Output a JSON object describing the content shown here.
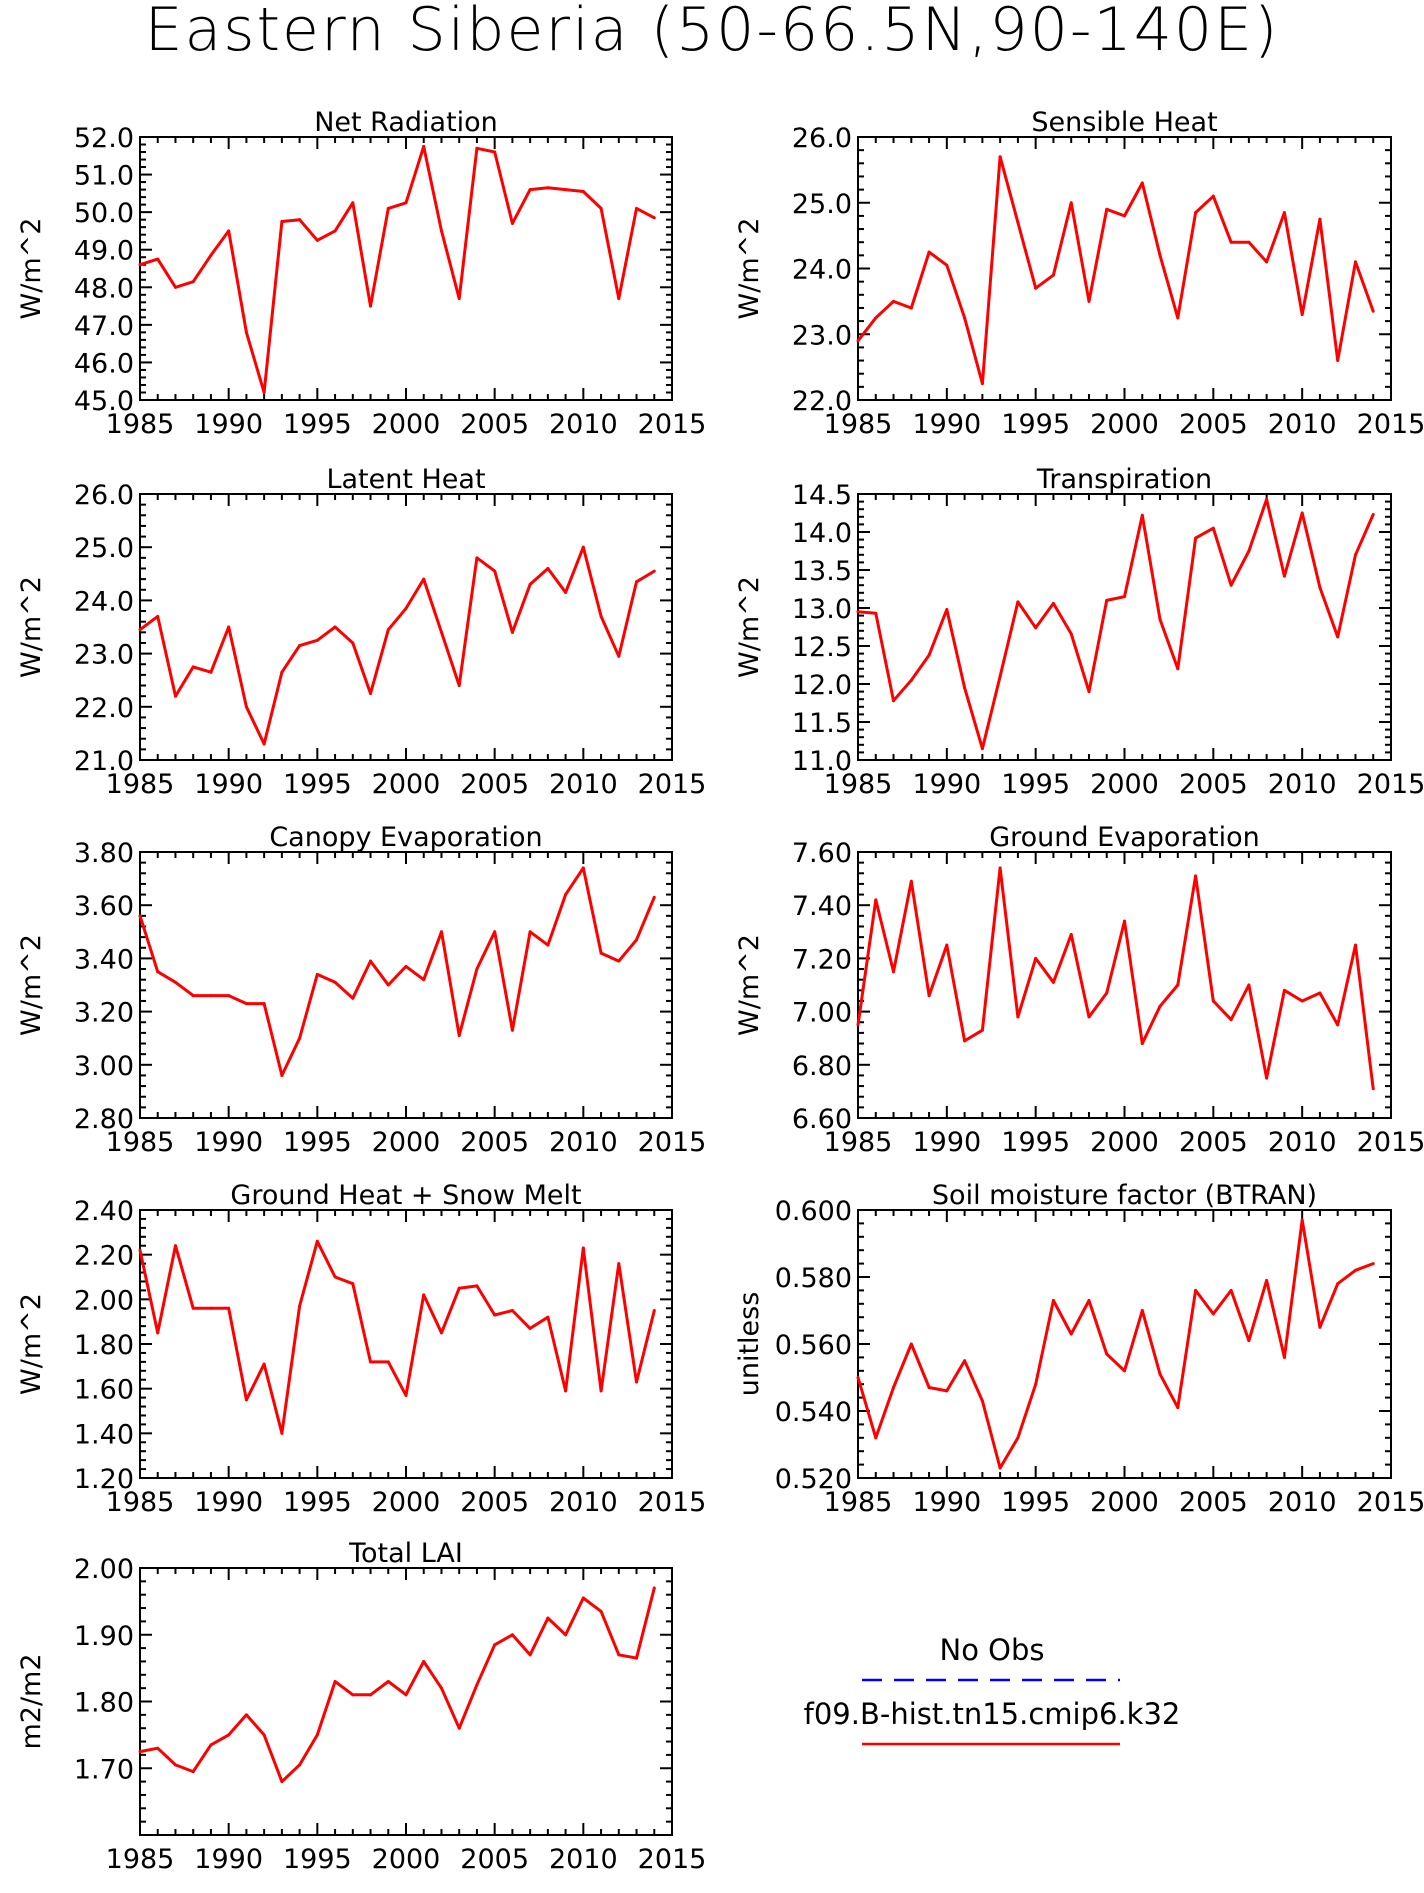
{
  "figure_title": "Eastern Siberia (50-66.5N,90-140E)",
  "legend": {
    "items": [
      {
        "label": "No Obs",
        "color": "#0000ff",
        "style": "dashed"
      },
      {
        "label": "f09.B-hist.tn15.cmip6.k32",
        "color": "#ff0000",
        "style": "solid"
      }
    ]
  },
  "series_color": "#ff0000",
  "chart_data": [
    {
      "type": "line",
      "title": "Net Radiation",
      "ylabel": "W/m^2",
      "xlabel": "",
      "xlim": [
        1985,
        2015
      ],
      "ylim": [
        45.0,
        52.0
      ],
      "xticks": [
        "1985",
        "1990",
        "1995",
        "2000",
        "2005",
        "2010",
        "2015"
      ],
      "yticks": [
        "45.0",
        "46.0",
        "47.0",
        "48.0",
        "49.0",
        "50.0",
        "51.0",
        "52.0"
      ],
      "x": [
        1985,
        1986,
        1987,
        1988,
        1989,
        1990,
        1991,
        1992,
        1993,
        1994,
        1995,
        1996,
        1997,
        1998,
        1999,
        2000,
        2001,
        2002,
        2003,
        2004,
        2005,
        2006,
        2007,
        2008,
        2009,
        2010,
        2011,
        2012,
        2013,
        2014
      ],
      "values": [
        48.6,
        48.75,
        48.0,
        48.15,
        48.85,
        49.5,
        46.8,
        45.2,
        49.75,
        49.8,
        49.25,
        49.5,
        50.25,
        47.5,
        50.1,
        50.25,
        51.75,
        49.5,
        47.7,
        51.7,
        51.6,
        49.7,
        50.6,
        50.65,
        50.6,
        50.55,
        50.1,
        47.7,
        50.1,
        49.85
      ],
      "grid": false
    },
    {
      "type": "line",
      "title": "Sensible Heat",
      "ylabel": "W/m^2",
      "xlabel": "",
      "xlim": [
        1985,
        2015
      ],
      "ylim": [
        22.0,
        26.0
      ],
      "xticks": [
        "1985",
        "1990",
        "1995",
        "2000",
        "2005",
        "2010",
        "2015"
      ],
      "yticks": [
        "22.0",
        "23.0",
        "24.0",
        "25.0",
        "26.0"
      ],
      "x": [
        1985,
        1986,
        1987,
        1988,
        1989,
        1990,
        1991,
        1992,
        1993,
        1994,
        1995,
        1996,
        1997,
        1998,
        1999,
        2000,
        2001,
        2002,
        2003,
        2004,
        2005,
        2006,
        2007,
        2008,
        2009,
        2010,
        2011,
        2012,
        2013,
        2014
      ],
      "values": [
        22.9,
        23.25,
        23.5,
        23.4,
        24.25,
        24.05,
        23.25,
        22.25,
        25.7,
        24.7,
        23.7,
        23.9,
        25.0,
        23.5,
        24.9,
        24.8,
        25.3,
        24.2,
        23.25,
        24.85,
        25.1,
        24.4,
        24.4,
        24.1,
        24.85,
        23.3,
        24.75,
        22.6,
        24.1,
        23.35
      ],
      "grid": false
    },
    {
      "type": "line",
      "title": "Latent Heat",
      "ylabel": "W/m^2",
      "xlabel": "",
      "xlim": [
        1985,
        2015
      ],
      "ylim": [
        21.0,
        26.0
      ],
      "xticks": [
        "1985",
        "1990",
        "1995",
        "2000",
        "2005",
        "2010",
        "2015"
      ],
      "yticks": [
        "21.0",
        "22.0",
        "23.0",
        "24.0",
        "25.0",
        "26.0"
      ],
      "x": [
        1985,
        1986,
        1987,
        1988,
        1989,
        1990,
        1991,
        1992,
        1993,
        1994,
        1995,
        1996,
        1997,
        1998,
        1999,
        2000,
        2001,
        2002,
        2003,
        2004,
        2005,
        2006,
        2007,
        2008,
        2009,
        2010,
        2011,
        2012,
        2013,
        2014
      ],
      "values": [
        23.45,
        23.7,
        22.2,
        22.75,
        22.65,
        23.5,
        22.0,
        21.3,
        22.65,
        23.15,
        23.25,
        23.5,
        23.2,
        22.25,
        23.45,
        23.85,
        24.4,
        23.4,
        22.4,
        24.8,
        24.55,
        23.4,
        24.3,
        24.6,
        24.15,
        25.0,
        23.7,
        22.95,
        24.35,
        24.55
      ],
      "grid": false
    },
    {
      "type": "line",
      "title": "Transpiration",
      "ylabel": "W/m^2",
      "xlabel": "",
      "xlim": [
        1985,
        2015
      ],
      "ylim": [
        11.0,
        14.5
      ],
      "xticks": [
        "1985",
        "1990",
        "1995",
        "2000",
        "2005",
        "2010",
        "2015"
      ],
      "yticks": [
        "11.0",
        "11.5",
        "12.0",
        "12.5",
        "13.0",
        "13.5",
        "14.0",
        "14.5"
      ],
      "x": [
        1985,
        1986,
        1987,
        1988,
        1989,
        1990,
        1991,
        1992,
        1993,
        1994,
        1995,
        1996,
        1997,
        1998,
        1999,
        2000,
        2001,
        2002,
        2003,
        2004,
        2005,
        2006,
        2007,
        2008,
        2009,
        2010,
        2011,
        2012,
        2013,
        2014
      ],
      "values": [
        12.95,
        12.93,
        11.78,
        12.05,
        12.38,
        12.98,
        11.95,
        11.15,
        12.1,
        13.08,
        12.74,
        13.06,
        12.66,
        11.9,
        13.1,
        13.15,
        14.22,
        12.85,
        12.2,
        13.92,
        14.05,
        13.3,
        13.75,
        14.43,
        13.42,
        14.25,
        13.27,
        12.62,
        13.7,
        14.23
      ],
      "grid": false
    },
    {
      "type": "line",
      "title": "Canopy Evaporation",
      "ylabel": "W/m^2",
      "xlabel": "",
      "xlim": [
        1985,
        2015
      ],
      "ylim": [
        2.8,
        3.8
      ],
      "xticks": [
        "1985",
        "1990",
        "1995",
        "2000",
        "2005",
        "2010",
        "2015"
      ],
      "yticks": [
        "2.80",
        "3.00",
        "3.20",
        "3.40",
        "3.60",
        "3.80"
      ],
      "x": [
        1985,
        1986,
        1987,
        1988,
        1989,
        1990,
        1991,
        1992,
        1993,
        1994,
        1995,
        1996,
        1997,
        1998,
        1999,
        2000,
        2001,
        2002,
        2003,
        2004,
        2005,
        2006,
        2007,
        2008,
        2009,
        2010,
        2011,
        2012,
        2013,
        2014
      ],
      "values": [
        3.56,
        3.35,
        3.31,
        3.26,
        3.26,
        3.26,
        3.23,
        3.23,
        2.96,
        3.1,
        3.34,
        3.31,
        3.25,
        3.39,
        3.3,
        3.37,
        3.32,
        3.5,
        3.11,
        3.36,
        3.5,
        3.13,
        3.5,
        3.45,
        3.64,
        3.74,
        3.42,
        3.39,
        3.47,
        3.63
      ],
      "grid": false
    },
    {
      "type": "line",
      "title": "Ground Evaporation",
      "ylabel": "W/m^2",
      "xlabel": "",
      "xlim": [
        1985,
        2015
      ],
      "ylim": [
        6.6,
        7.6
      ],
      "xticks": [
        "1985",
        "1990",
        "1995",
        "2000",
        "2005",
        "2010",
        "2015"
      ],
      "yticks": [
        "6.60",
        "6.80",
        "7.00",
        "7.20",
        "7.40",
        "7.60"
      ],
      "x": [
        1985,
        1986,
        1987,
        1988,
        1989,
        1990,
        1991,
        1992,
        1993,
        1994,
        1995,
        1996,
        1997,
        1998,
        1999,
        2000,
        2001,
        2002,
        2003,
        2004,
        2005,
        2006,
        2007,
        2008,
        2009,
        2010,
        2011,
        2012,
        2013,
        2014
      ],
      "values": [
        6.95,
        7.42,
        7.15,
        7.49,
        7.06,
        7.25,
        6.89,
        6.93,
        7.54,
        6.98,
        7.2,
        7.11,
        7.29,
        6.98,
        7.07,
        7.34,
        6.88,
        7.02,
        7.1,
        7.51,
        7.04,
        6.97,
        7.1,
        6.75,
        7.08,
        7.04,
        7.07,
        6.95,
        7.25,
        6.71
      ],
      "grid": false
    },
    {
      "type": "line",
      "title": "Ground Heat + Snow Melt",
      "ylabel": "W/m^2",
      "xlabel": "",
      "xlim": [
        1985,
        2015
      ],
      "ylim": [
        1.2,
        2.4
      ],
      "xticks": [
        "1985",
        "1990",
        "1995",
        "2000",
        "2005",
        "2010",
        "2015"
      ],
      "yticks": [
        "1.20",
        "1.40",
        "1.60",
        "1.80",
        "2.00",
        "2.20",
        "2.40"
      ],
      "x": [
        1985,
        1986,
        1987,
        1988,
        1989,
        1990,
        1991,
        1992,
        1993,
        1994,
        1995,
        1996,
        1997,
        1998,
        1999,
        2000,
        2001,
        2002,
        2003,
        2004,
        2005,
        2006,
        2007,
        2008,
        2009,
        2010,
        2011,
        2012,
        2013,
        2014
      ],
      "values": [
        2.22,
        1.85,
        2.24,
        1.96,
        1.96,
        1.96,
        1.55,
        1.71,
        1.4,
        1.97,
        2.26,
        2.1,
        2.07,
        1.72,
        1.72,
        1.57,
        2.02,
        1.85,
        2.05,
        2.06,
        1.93,
        1.95,
        1.87,
        1.92,
        1.59,
        2.23,
        1.59,
        2.16,
        1.63,
        1.95
      ],
      "grid": false
    },
    {
      "type": "line",
      "title": "Soil moisture factor (BTRAN)",
      "ylabel": "unitless",
      "xlabel": "",
      "xlim": [
        1985,
        2015
      ],
      "ylim": [
        0.52,
        0.6
      ],
      "xticks": [
        "1985",
        "1990",
        "1995",
        "2000",
        "2005",
        "2010",
        "2015"
      ],
      "yticks": [
        "0.520",
        "0.540",
        "0.560",
        "0.580",
        "0.600"
      ],
      "x": [
        1985,
        1986,
        1987,
        1988,
        1989,
        1990,
        1991,
        1992,
        1993,
        1994,
        1995,
        1996,
        1997,
        1998,
        1999,
        2000,
        2001,
        2002,
        2003,
        2004,
        2005,
        2006,
        2007,
        2008,
        2009,
        2010,
        2011,
        2012,
        2013,
        2014
      ],
      "values": [
        0.55,
        0.532,
        0.547,
        0.56,
        0.547,
        0.546,
        0.555,
        0.543,
        0.523,
        0.532,
        0.548,
        0.573,
        0.563,
        0.573,
        0.557,
        0.552,
        0.57,
        0.551,
        0.541,
        0.576,
        0.569,
        0.576,
        0.561,
        0.579,
        0.556,
        0.597,
        0.565,
        0.578,
        0.582,
        0.584
      ],
      "grid": false
    },
    {
      "type": "line",
      "title": "Total LAI",
      "ylabel": "m2/m2",
      "xlabel": "",
      "xlim": [
        1985,
        2015
      ],
      "ylim": [
        1.6,
        2.0
      ],
      "xticks": [
        "1985",
        "1990",
        "1995",
        "2000",
        "2005",
        "2010",
        "2015"
      ],
      "yticks": [
        "1.70",
        "1.80",
        "1.90",
        "2.00"
      ],
      "x": [
        1985,
        1986,
        1987,
        1988,
        1989,
        1990,
        1991,
        1992,
        1993,
        1994,
        1995,
        1996,
        1997,
        1998,
        1999,
        2000,
        2001,
        2002,
        2003,
        2004,
        2005,
        2006,
        2007,
        2008,
        2009,
        2010,
        2011,
        2012,
        2013,
        2014
      ],
      "values": [
        1.725,
        1.73,
        1.705,
        1.695,
        1.735,
        1.75,
        1.78,
        1.75,
        1.68,
        1.705,
        1.75,
        1.83,
        1.81,
        1.81,
        1.83,
        1.81,
        1.86,
        1.82,
        1.76,
        1.825,
        1.885,
        1.9,
        1.87,
        1.925,
        1.9,
        1.955,
        1.935,
        1.87,
        1.865,
        1.97
      ],
      "grid": false
    }
  ]
}
